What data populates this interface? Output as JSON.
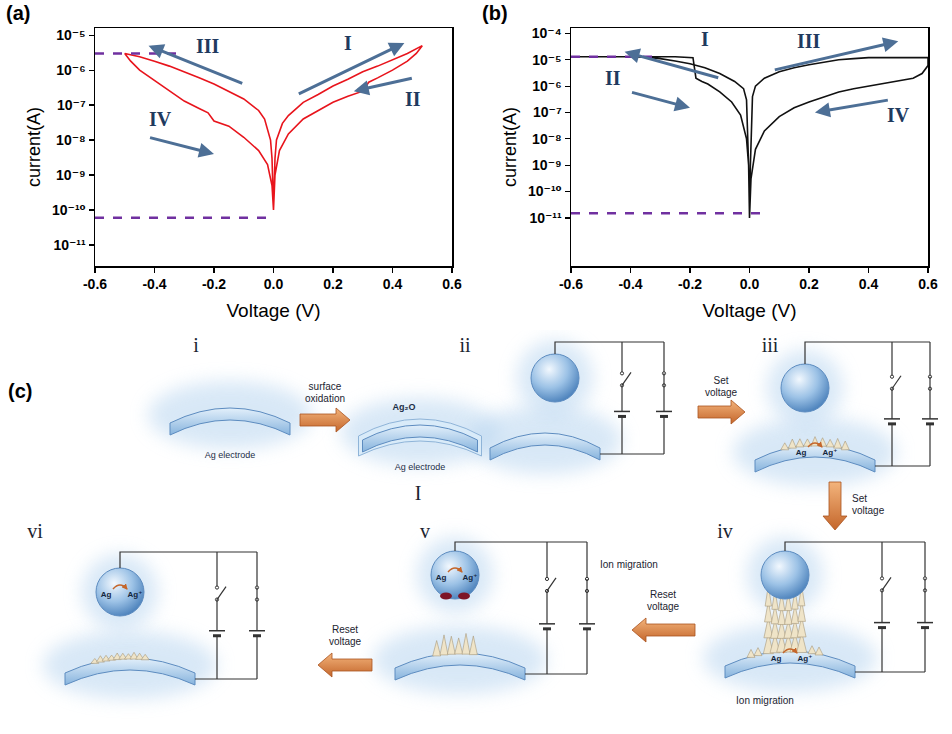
{
  "chart_data": [
    {
      "type": "line",
      "title": "(a)",
      "x_label": "Voltage (V)",
      "y_label": "current(A)",
      "log": "y",
      "grid": false,
      "xlim": [
        -0.6,
        0.6
      ],
      "ylim": [
        2.5e-12,
        1.6e-05
      ],
      "xticks": [
        -0.6,
        -0.4,
        -0.2,
        {
          "value": 0,
          "label": "0.0"
        },
        0.2,
        0.4,
        0.6
      ],
      "yticks": [
        {
          "value": 1e-11,
          "label": "10⁻¹¹"
        },
        {
          "value": 1e-10,
          "label": "10⁻¹⁰"
        },
        {
          "value": 1e-09,
          "label": "10⁻⁹"
        },
        {
          "value": 1e-08,
          "label": "10⁻⁸"
        },
        {
          "value": 1e-07,
          "label": "10⁻⁷"
        },
        {
          "value": 1e-06,
          "label": "10⁻⁶"
        },
        {
          "value": 1e-05,
          "label": "10⁻⁵"
        }
      ],
      "series": [
        {
          "color": "#e8141c",
          "x": [
            0,
            0.005,
            0.01,
            0.03,
            0.05,
            0.1,
            0.15,
            0.2,
            0.25,
            0.3,
            0.35,
            0.4,
            0.45,
            0.5,
            0.48,
            0.45,
            0.4,
            0.35,
            0.32,
            0.3,
            0.25,
            0.2,
            0.15,
            0.1,
            0.05,
            0.02,
            0.005,
            0,
            -0.005,
            -0.01,
            -0.03,
            -0.05,
            -0.1,
            -0.15,
            -0.2,
            -0.25,
            -0.3,
            -0.35,
            -0.4,
            -0.45,
            -0.5,
            -0.48,
            -0.45,
            -0.4,
            -0.35,
            -0.3,
            -0.25,
            -0.22,
            -0.2,
            -0.15,
            -0.1,
            -0.05,
            -0.02,
            -0.005,
            0
          ],
          "values": [
            1e-10,
            3e-09,
            1e-08,
            3e-08,
            5e-08,
            1.2e-07,
            2e-07,
            3.5e-07,
            5.5e-07,
            9e-07,
            1.3e-06,
            2e-06,
            3e-06,
            5e-06,
            3e-06,
            1.8e-06,
            1e-06,
            6e-07,
            4.5e-07,
            2.5e-07,
            1.8e-07,
            1.2e-07,
            7e-08,
            4e-08,
            1.5e-08,
            5e-09,
            1e-09,
            1e-10,
            3e-09,
            1e-08,
            4e-08,
            7e-08,
            1.5e-07,
            2.5e-07,
            4e-07,
            6e-07,
            9e-07,
            1.3e-06,
            1.8e-06,
            2.4e-06,
            3e-06,
            1.8e-06,
            1e-06,
            5e-07,
            2.5e-07,
            1.3e-07,
            8e-08,
            6e-08,
            3.5e-08,
            2.5e-08,
            1.2e-08,
            5e-09,
            2e-09,
            5e-10,
            1e-10
          ]
        }
      ],
      "reference_lines": [
        {
          "y": 3e-06,
          "x": [
            -0.6,
            -0.3
          ],
          "color": "#7030a0",
          "line_style": "dashed"
        },
        {
          "y": 6e-11,
          "x": [
            -0.6,
            0.0
          ],
          "color": "#7030a0",
          "line_style": "dashed"
        }
      ],
      "annotations": [
        {
          "text": "I",
          "x": 0.25,
          "y": 6e-06,
          "arrow_from": [
            0.08,
            2e-07
          ],
          "arrow_to": [
            0.44,
            6e-06
          ]
        },
        {
          "text": "II",
          "x": 0.47,
          "y": 1.5e-07,
          "arrow_from": [
            0.47,
            6e-07
          ],
          "arrow_to": [
            0.27,
            2.5e-07
          ]
        },
        {
          "text": "III",
          "x": -0.22,
          "y": 5e-06,
          "arrow_from": [
            -0.1,
            4e-07
          ],
          "arrow_to": [
            -0.42,
            5e-06
          ]
        },
        {
          "text": "IV",
          "x": -0.38,
          "y": 4e-08,
          "arrow_from": [
            -0.42,
            1.2e-08
          ],
          "arrow_to": [
            -0.2,
            4e-09
          ]
        }
      ]
    },
    {
      "type": "line",
      "title": "(b)",
      "x_label": "Voltage (V)",
      "y_label": "current(A)",
      "log": "y",
      "grid": false,
      "xlim": [
        -0.6,
        0.6
      ],
      "ylim": [
        1.5e-13,
        0.00016
      ],
      "xticks": [
        -0.6,
        -0.4,
        -0.2,
        {
          "value": 0,
          "label": "0.0"
        },
        0.2,
        0.4,
        0.6
      ],
      "yticks": [
        {
          "value": 1e-11,
          "label": "10⁻¹¹"
        },
        {
          "value": 1e-10,
          "label": "10⁻¹⁰"
        },
        {
          "value": 1e-09,
          "label": "10⁻⁹"
        },
        {
          "value": 1e-08,
          "label": "10⁻⁸"
        },
        {
          "value": 1e-07,
          "label": "10⁻⁷"
        },
        {
          "value": 1e-06,
          "label": "10⁻⁶"
        },
        {
          "value": 1e-05,
          "label": "10⁻⁵"
        },
        {
          "value": 0.0001,
          "label": "10⁻⁴"
        }
      ],
      "series": [
        {
          "color": "#111111",
          "x": [
            0,
            -0.003,
            -0.01,
            -0.02,
            -0.05,
            -0.1,
            -0.15,
            -0.2,
            -0.25,
            -0.3,
            -0.35,
            -0.4,
            -0.5,
            -0.6,
            -0.4,
            -0.25,
            -0.19,
            -0.18,
            -0.16,
            -0.14,
            -0.1,
            -0.06,
            -0.03,
            -0.01,
            -0.003,
            0,
            0.003,
            0.01,
            0.02,
            0.05,
            0.1,
            0.15,
            0.2,
            0.25,
            0.3,
            0.35,
            0.4,
            0.5,
            0.6,
            0.6,
            0.58,
            0.55,
            0.5,
            0.45,
            0.4,
            0.35,
            0.3,
            0.25,
            0.2,
            0.15,
            0.1,
            0.05,
            0.02,
            0.005,
            0
          ],
          "values": [
            1e-11,
            1e-09,
            3e-07,
            8e-07,
            1.5e-06,
            3e-06,
            5e-06,
            7e-06,
            9e-06,
            1.1e-05,
            1.25e-05,
            1.3e-05,
            1.3e-05,
            1.3e-05,
            1.3e-05,
            1.3e-05,
            1.2e-05,
            2e-06,
            1.5e-06,
            1.2e-06,
            6e-07,
            2.5e-07,
            8e-08,
            1e-08,
            1e-09,
            1e-11,
            1e-09,
            4e-07,
            1e-06,
            2e-06,
            3.5e-06,
            5e-06,
            6.5e-06,
            8e-06,
            1e-05,
            1.1e-05,
            1.2e-05,
            1.2e-05,
            1.2e-05,
            6e-06,
            3e-06,
            2e-06,
            1.6e-06,
            1.3e-06,
            1e-06,
            8e-07,
            6e-07,
            4e-07,
            2.5e-07,
            1.5e-07,
            7e-08,
            2e-08,
            4e-09,
            3e-10,
            1e-11
          ]
        }
      ],
      "reference_lines": [
        {
          "y": 1.3e-05,
          "x": [
            -0.6,
            -0.3
          ],
          "color": "#7030a0",
          "line_style": "dashed"
        },
        {
          "y": 1.5e-11,
          "x": [
            -0.6,
            0.05
          ],
          "color": "#7030a0",
          "line_style": "dashed"
        }
      ],
      "annotations": [
        {
          "text": "I",
          "x": -0.15,
          "y": 6e-05,
          "arrow_from": [
            -0.1,
            2e-06
          ],
          "arrow_to": [
            -0.42,
            2e-05
          ]
        },
        {
          "text": "II",
          "x": -0.46,
          "y": 2e-06,
          "arrow_from": [
            -0.4,
            6e-07
          ],
          "arrow_to": [
            -0.2,
            1.5e-07
          ]
        },
        {
          "text": "III",
          "x": 0.2,
          "y": 5e-05,
          "arrow_from": [
            0.08,
            4e-06
          ],
          "arrow_to": [
            0.5,
            5e-05
          ]
        },
        {
          "text": "IV",
          "x": 0.5,
          "y": 8e-08,
          "arrow_from": [
            0.47,
            3e-07
          ],
          "arrow_to": [
            0.22,
            1e-07
          ]
        }
      ]
    }
  ],
  "diagram": {
    "label": "(c)",
    "panels": [
      {
        "numeral": "i",
        "electrode_label": "Ag electrode"
      },
      {
        "numeral": "ii",
        "oxide_label": "Ag₂O",
        "electrode_label": "Ag electrode",
        "mark": "I"
      },
      {
        "numeral": "iii",
        "ion_labels": [
          "Ag",
          "Ag⁺"
        ]
      },
      {
        "numeral": "iv",
        "ion_labels": [
          "Ag",
          "Ag⁺"
        ],
        "note": "Ion migration"
      },
      {
        "numeral": "v",
        "ion_labels": [
          "Ag",
          "Ag⁺"
        ],
        "note": "Ion migration"
      },
      {
        "numeral": "vi",
        "ion_labels": [
          "Ag",
          "Ag⁺"
        ]
      }
    ],
    "steps": [
      {
        "from": "i",
        "to": "ii",
        "label": "surface oxidation"
      },
      {
        "from": "ii",
        "to": "iii",
        "label": "Set voltage"
      },
      {
        "from": "iii",
        "to": "iv",
        "label": "Set voltage"
      },
      {
        "from": "iv",
        "to": "v",
        "label": "Reset voltage"
      },
      {
        "from": "v",
        "to": "vi",
        "label": "Reset voltage"
      }
    ]
  }
}
